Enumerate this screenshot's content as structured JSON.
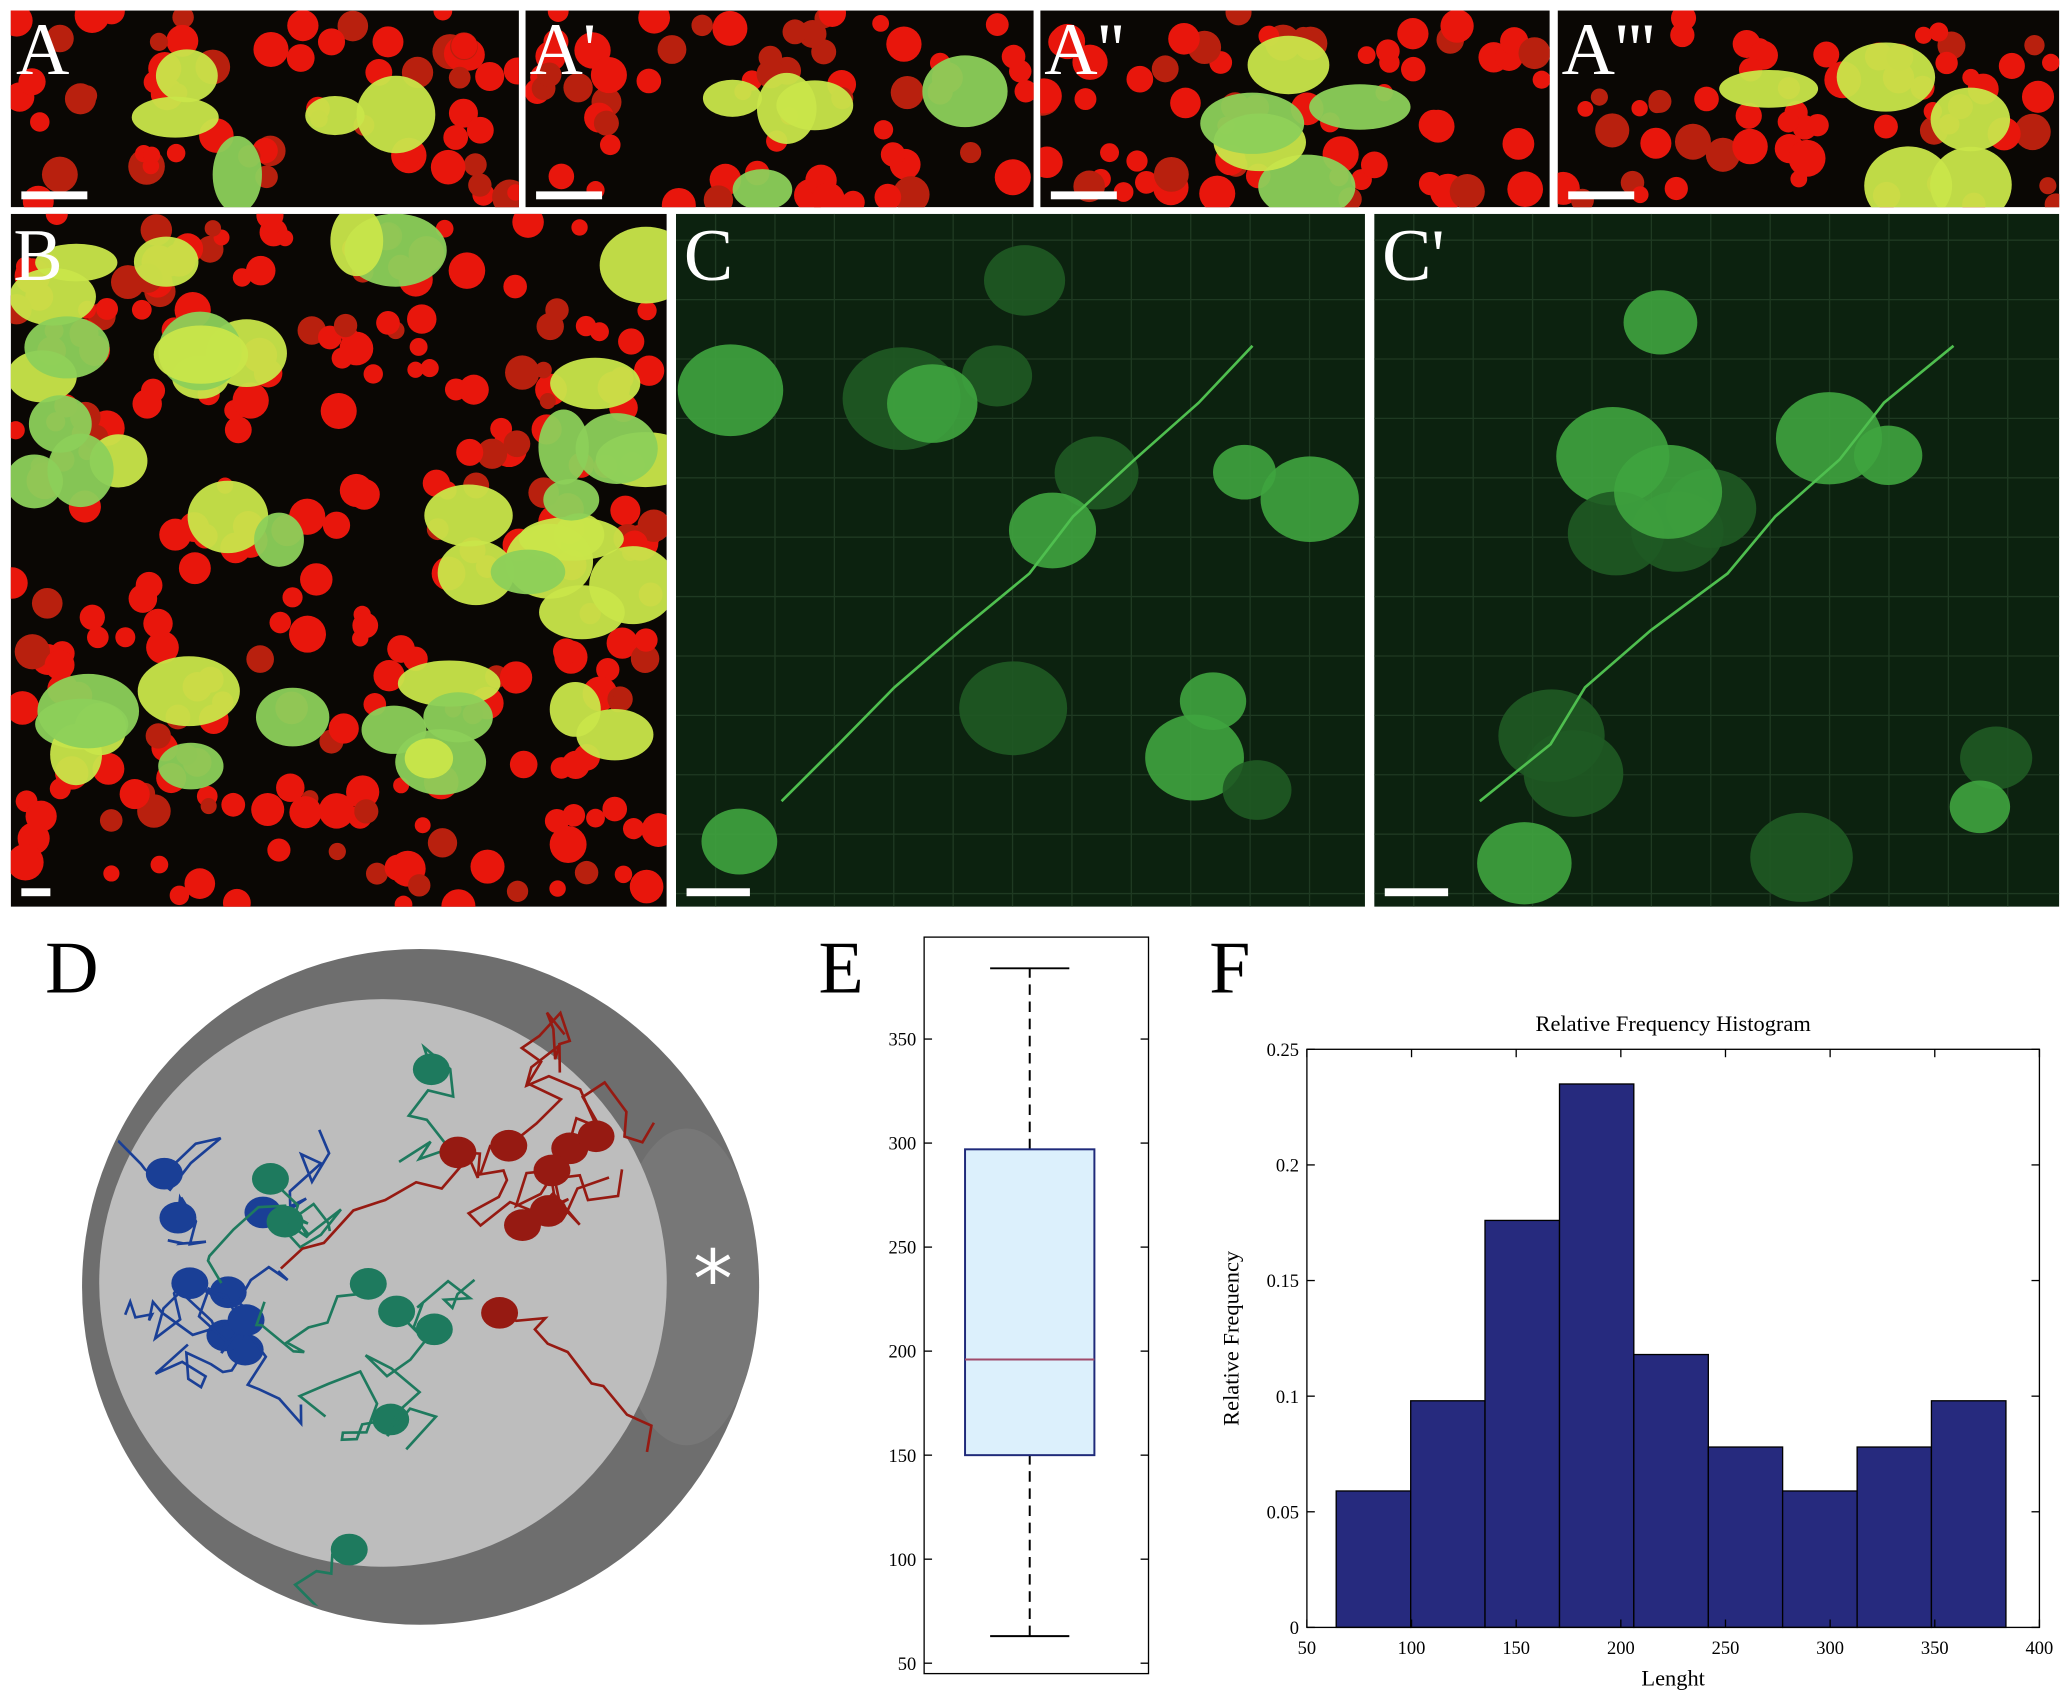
{
  "panels": [
    "A",
    "A'",
    "A''",
    "A'''",
    "B",
    "C",
    "C'",
    "D",
    "E",
    "F"
  ],
  "annotation": "*",
  "chart_data": [
    {
      "type": "box",
      "min": 63,
      "q1": 150,
      "median": 196,
      "q3": 297,
      "max": 384,
      "color": "#1f2a7a",
      "fill": "#dcf0fc",
      "median_color": "#a04a6a",
      "ylim": [
        45,
        399
      ],
      "yticks": [
        50,
        100,
        150,
        200,
        250,
        300,
        350
      ]
    },
    {
      "type": "histogram",
      "title": "Relative Frequency Histogram",
      "xlabel": "Lenght",
      "ylabel": "Relative Frequency",
      "bins": [
        64,
        99.6,
        135.1,
        170.7,
        206.2,
        241.8,
        277.3,
        312.9,
        348.4,
        384
      ],
      "values": [
        0.059,
        0.098,
        0.176,
        0.235,
        0.118,
        0.078,
        0.059,
        0.078,
        0.098
      ],
      "color": "#262a7e",
      "xlim": [
        50,
        400
      ],
      "xticks": [
        50,
        100,
        150,
        200,
        250,
        300,
        350,
        400
      ],
      "ylim": [
        0,
        0.25
      ],
      "yticks": [
        0,
        0.05,
        0.1,
        0.15,
        0.2,
        0.25
      ]
    }
  ]
}
